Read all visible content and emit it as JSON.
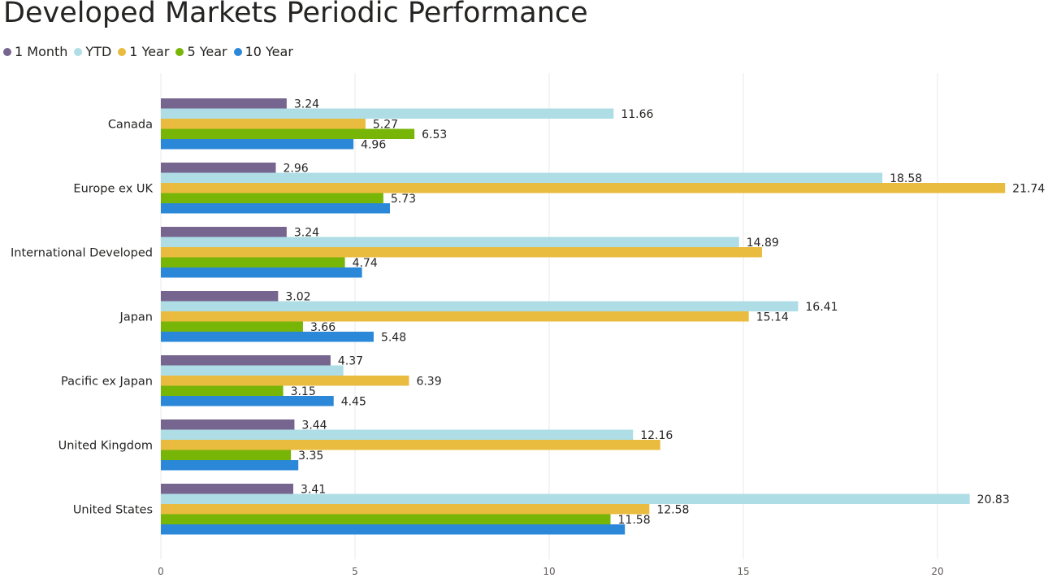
{
  "chart_data": {
    "type": "bar",
    "orientation": "horizontal",
    "title": "Developed Markets Periodic Performance",
    "categories": [
      "Canada",
      "Europe ex UK",
      "International Developed",
      "Japan",
      "Pacific ex Japan",
      "United Kingdom",
      "United States"
    ],
    "series": [
      {
        "name": "1 Month",
        "color": "#76668f",
        "values": [
          3.24,
          2.96,
          3.24,
          3.02,
          4.37,
          3.44,
          3.41
        ]
      },
      {
        "name": "YTD",
        "color": "#afdde5",
        "values": [
          11.66,
          18.58,
          14.89,
          16.41,
          4.7,
          12.16,
          20.83
        ]
      },
      {
        "name": "1 Year",
        "color": "#e9bc3f",
        "values": [
          5.27,
          21.74,
          15.48,
          15.14,
          6.39,
          12.86,
          12.58
        ]
      },
      {
        "name": "5 Year",
        "color": "#77b507",
        "values": [
          6.53,
          5.73,
          4.74,
          3.66,
          3.15,
          3.35,
          11.58
        ]
      },
      {
        "name": "10 Year",
        "color": "#2b88d8",
        "values": [
          4.96,
          5.9,
          5.18,
          5.48,
          4.45,
          3.54,
          11.95
        ]
      }
    ],
    "data_labels": [
      [
        "3.24",
        "11.66",
        "5.27",
        "6.53",
        "4.96"
      ],
      [
        "2.96",
        "18.58",
        "21.74",
        "5.73",
        ""
      ],
      [
        "3.24",
        "14.89",
        "",
        "4.74",
        ""
      ],
      [
        "3.02",
        "16.41",
        "15.14",
        "3.66",
        "5.48"
      ],
      [
        "4.37",
        "",
        "6.39",
        "3.15",
        "4.45"
      ],
      [
        "3.44",
        "12.16",
        "",
        "3.35",
        ""
      ],
      [
        "3.41",
        "20.83",
        "12.58",
        "11.58",
        ""
      ]
    ],
    "xlim": [
      0,
      22.5
    ],
    "xticks": [
      0,
      5,
      10,
      15,
      20
    ],
    "xlabel": "",
    "ylabel": "",
    "grid": true,
    "legend": "top-left"
  }
}
